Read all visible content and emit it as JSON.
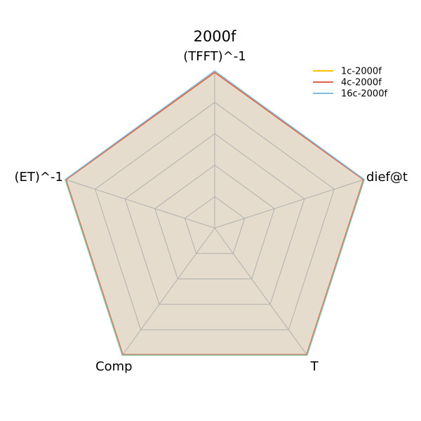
{
  "chart_data": {
    "type": "radar",
    "title": "2000f",
    "axes": [
      "(TFFT)^-1",
      "dief@t",
      "T",
      "Comp",
      "(ET)^-1"
    ],
    "rlim": [
      0,
      1
    ],
    "grid_levels": 5,
    "grid": true,
    "legend_position": "top-right",
    "series": [
      {
        "name": "1c-2000f",
        "color": "#ffbf00",
        "values": [
          0.99,
          0.995,
          0.995,
          0.995,
          0.995
        ]
      },
      {
        "name": "4c-2000f",
        "color": "#e0604a",
        "values": [
          0.99,
          0.995,
          0.995,
          0.995,
          0.995
        ]
      },
      {
        "name": "16c-2000f",
        "color": "#82bcdb",
        "values": [
          1.0,
          1.0,
          1.0,
          1.0,
          1.0
        ]
      }
    ],
    "fill_color": "#e4d8c8",
    "last_series_edge_color": "#8fbf9f"
  }
}
